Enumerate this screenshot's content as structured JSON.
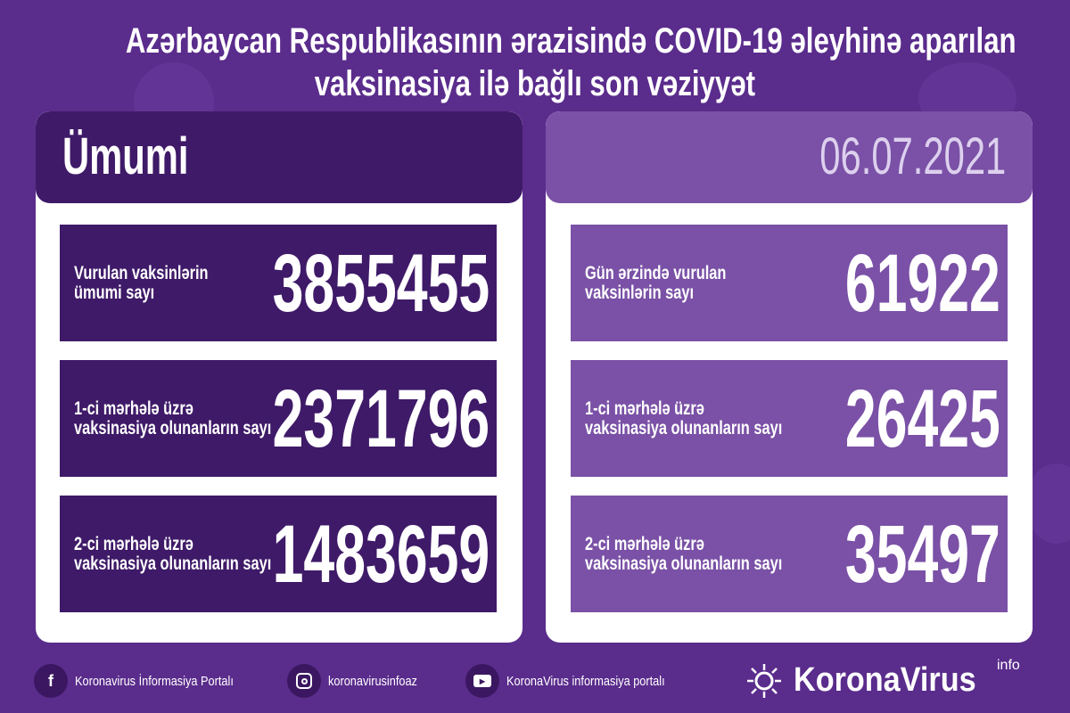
{
  "title": {
    "line1": "Azərbaycan Respublikasının ərazisində COVID-19 əleyhinə aparılan",
    "line2": "vaksinasiya ilə bağlı son vəziyyət"
  },
  "left_panel": {
    "heading": "Ümumi",
    "stats": [
      {
        "label_line1": "Vurulan vaksinlərin",
        "label_line2": "ümumi sayı",
        "value": "3855455"
      },
      {
        "label_line1": "1-ci mərhələ üzrə",
        "label_line2": "vaksinasiya olunanların sayı",
        "value": "2371796"
      },
      {
        "label_line1": "2-ci mərhələ üzrə",
        "label_line2": "vaksinasiya olunanların sayı",
        "value": "1483659"
      }
    ]
  },
  "right_panel": {
    "date": "06.07.2021",
    "stats": [
      {
        "label_line1": "Gün ərzində vurulan",
        "label_line2": "vaksinlərin sayı",
        "value": "61922"
      },
      {
        "label_line1": "1-ci mərhələ üzrə",
        "label_line2": "vaksinasiya olunanların sayı",
        "value": "26425"
      },
      {
        "label_line1": "2-ci mərhələ üzrə",
        "label_line2": "vaksinasiya olunanların sayı",
        "value": "35497"
      }
    ]
  },
  "footer": {
    "facebook": {
      "icon": "facebook-icon",
      "label": "Koronavirus İnformasiya Portalı"
    },
    "instagram": {
      "icon": "instagram-icon",
      "label": "koronavirusinfoaz"
    },
    "youtube": {
      "icon": "youtube-icon",
      "label": "KoronaVirus informasiya portalı"
    },
    "brand": {
      "name": "KoronaVirus",
      "sup": "info"
    }
  },
  "colors": {
    "background": "#5a2c8c",
    "dark_panel": "#3f1a68",
    "light_panel": "#7a51a6"
  }
}
